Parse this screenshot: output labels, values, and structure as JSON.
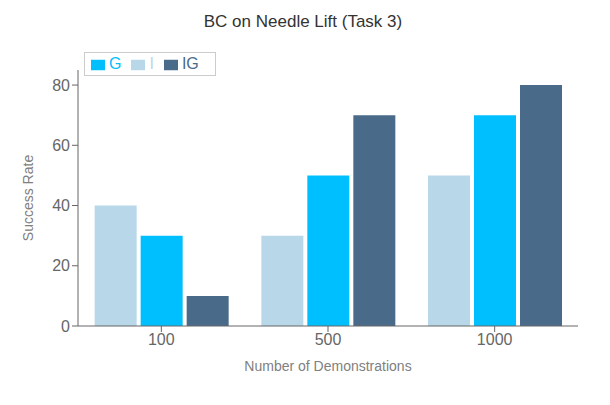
{
  "chart_data": {
    "type": "bar",
    "title": "BC on Needle Lift (Task 3)",
    "xlabel": "Number of Demonstrations",
    "ylabel": "Success Rate",
    "categories": [
      100,
      500,
      1000
    ],
    "series": [
      {
        "name": "I",
        "color": "#b8d8ea",
        "values": [
          40,
          30,
          50
        ]
      },
      {
        "name": "G",
        "color": "#00bfff",
        "values": [
          30,
          50,
          70
        ]
      },
      {
        "name": "IG",
        "color": "#4a6a8a",
        "values": [
          10,
          70,
          80
        ]
      }
    ],
    "ylim": [
      0,
      85
    ],
    "yticks": [
      0,
      20,
      40,
      60,
      80
    ],
    "grid": false,
    "legend": "upper left"
  }
}
